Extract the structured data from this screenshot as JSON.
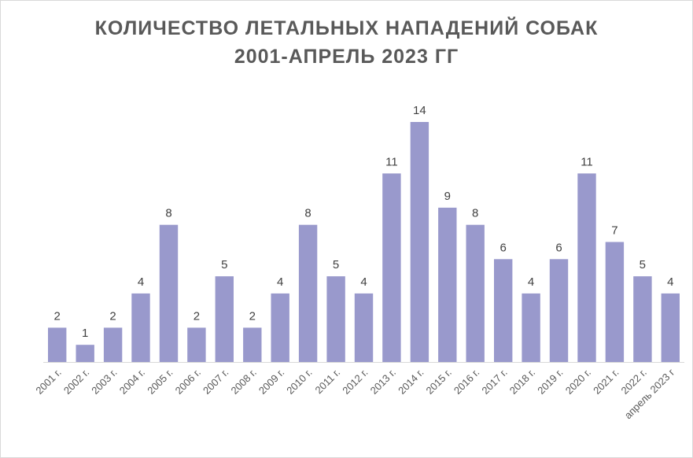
{
  "chart_data": {
    "type": "bar",
    "title_line1": "КОЛИЧЕСТВО ЛЕТАЛЬНЫХ НАПАДЕНИЙ СОБАК",
    "title_line2": "2001-АПРЕЛЬ 2023 ГГ",
    "categories": [
      "2001 г.",
      "2002 г.",
      "2003 г.",
      "2004 г.",
      "2005 г.",
      "2006 г.",
      "2007 г.",
      "2008 г.",
      "2009 г.",
      "2010 г.",
      "2011 г.",
      "2012 г.",
      "2013 г.",
      "2014 г.",
      "2015 г.",
      "2016 г.",
      "2017 г.",
      "2018 г.",
      "2019 г.",
      "2020 г.",
      "2021 г.",
      "2022 г.",
      "апрель 2023 г"
    ],
    "values": [
      2,
      1,
      2,
      4,
      8,
      2,
      5,
      2,
      4,
      8,
      5,
      4,
      11,
      14,
      9,
      8,
      6,
      4,
      6,
      11,
      7,
      5,
      4
    ],
    "ylim": [
      0,
      14
    ],
    "grid": false,
    "legend": "none",
    "bar_color": "#9999cc",
    "label_color": "#404040",
    "tick_color": "#595959"
  }
}
